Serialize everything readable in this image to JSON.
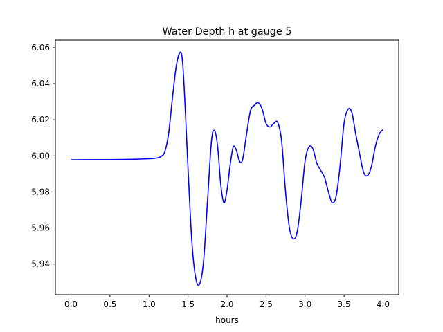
{
  "chart_data": {
    "type": "line",
    "title": "Water Depth h at gauge 5",
    "xlabel": "hours",
    "ylabel": "",
    "xlim": [
      -0.2,
      4.2
    ],
    "ylim": [
      5.923,
      6.0642
    ],
    "xticks": [
      0.0,
      0.5,
      1.0,
      1.5,
      2.0,
      2.5,
      3.0,
      3.5,
      4.0
    ],
    "xtick_labels": [
      "0.0",
      "0.5",
      "1.0",
      "1.5",
      "2.0",
      "2.5",
      "3.0",
      "3.5",
      "4.0"
    ],
    "yticks": [
      5.94,
      5.96,
      5.98,
      6.0,
      6.02,
      6.04,
      6.06
    ],
    "ytick_labels": [
      "5.94",
      "5.96",
      "5.98",
      "6.00",
      "6.02",
      "6.04",
      "6.06"
    ],
    "grid": false,
    "legend": false,
    "series": [
      {
        "color": "#0000ff",
        "x": [
          0.0,
          0.5,
          0.8,
          1.0,
          1.1,
          1.15,
          1.2,
          1.25,
          1.3,
          1.35,
          1.4,
          1.43,
          1.46,
          1.5,
          1.55,
          1.6,
          1.65,
          1.7,
          1.75,
          1.8,
          1.84,
          1.88,
          1.92,
          1.96,
          2.0,
          2.04,
          2.08,
          2.12,
          2.16,
          2.2,
          2.25,
          2.3,
          2.35,
          2.4,
          2.45,
          2.5,
          2.55,
          2.6,
          2.65,
          2.7,
          2.75,
          2.8,
          2.85,
          2.9,
          2.95,
          3.0,
          3.05,
          3.1,
          3.15,
          3.2,
          3.25,
          3.3,
          3.35,
          3.4,
          3.45,
          3.5,
          3.55,
          3.6,
          3.65,
          3.7,
          3.75,
          3.8,
          3.85,
          3.9,
          3.95,
          4.0
        ],
        "y": [
          5.9978,
          5.9979,
          5.9981,
          5.9984,
          5.9988,
          5.9996,
          6.002,
          6.012,
          6.032,
          6.05,
          6.0575,
          6.052,
          6.03,
          5.993,
          5.952,
          5.932,
          5.929,
          5.942,
          5.975,
          6.008,
          6.014,
          6.005,
          5.984,
          5.974,
          5.981,
          5.995,
          6.005,
          6.003,
          5.997,
          5.998,
          6.012,
          6.025,
          6.028,
          6.0295,
          6.026,
          6.018,
          6.016,
          6.018,
          6.0185,
          6.008,
          5.98,
          5.96,
          5.954,
          5.958,
          5.975,
          5.997,
          6.005,
          6.004,
          5.996,
          5.992,
          5.988,
          5.98,
          5.974,
          5.978,
          5.995,
          6.018,
          6.0258,
          6.024,
          6.012,
          6.001,
          5.991,
          5.989,
          5.994,
          6.005,
          6.012,
          6.0145
        ]
      }
    ]
  }
}
